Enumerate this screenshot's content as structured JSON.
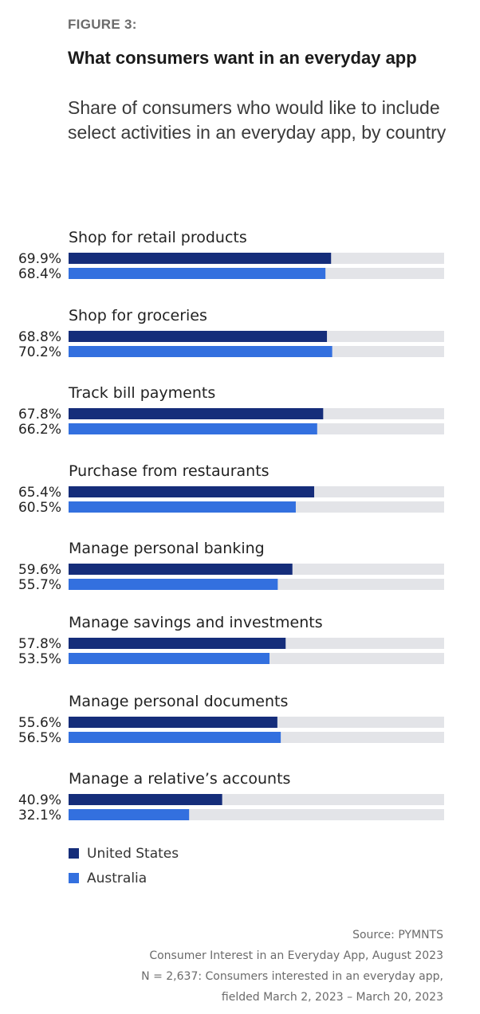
{
  "figure_label": "FIGURE 3:",
  "title": "What consumers want in an everyday app",
  "subtitle": "Share of consumers who would like to include select activities in an everyday app, by country",
  "colors": {
    "us": "#152d7a",
    "au": "#3370df",
    "track": "#e3e4e8"
  },
  "legend": [
    {
      "label": "United States",
      "color": "#152d7a"
    },
    {
      "label": "Australia",
      "color": "#3370df"
    }
  ],
  "source": {
    "line1": "Source: PYMNTS",
    "line2": "Consumer Interest in an Everyday App, August 2023",
    "line3": "N = 2,637: Consumers interested in an everyday app,",
    "line4": "fielded March 2, 2023 – March 20, 2023"
  },
  "chart_data": {
    "type": "bar",
    "orientation": "horizontal",
    "xlim": [
      0,
      100
    ],
    "categories": [
      "Shop for retail products",
      "Shop for groceries",
      "Track bill payments",
      "Purchase from restaurants",
      "Manage personal banking",
      "Manage savings and investments",
      "Manage personal documents",
      "Manage a relative’s accounts"
    ],
    "series": [
      {
        "name": "United States",
        "values": [
          69.9,
          68.8,
          67.8,
          65.4,
          59.6,
          57.8,
          55.6,
          40.9
        ],
        "labels": [
          "69.9%",
          "68.8%",
          "67.8%",
          "65.4%",
          "59.6%",
          "57.8%",
          "55.6%",
          "40.9%"
        ]
      },
      {
        "name": "Australia",
        "values": [
          68.4,
          70.2,
          66.2,
          60.5,
          55.7,
          53.5,
          56.5,
          32.1
        ],
        "labels": [
          "68.4%",
          "70.2%",
          "66.2%",
          "60.5%",
          "55.7%",
          "53.5%",
          "56.5%",
          "32.1%"
        ]
      }
    ]
  }
}
